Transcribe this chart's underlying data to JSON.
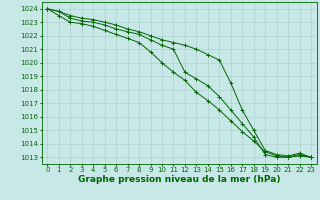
{
  "background_color": "#c8e8e8",
  "grid_color": "#b0d0d0",
  "line_color": "#006600",
  "marker_color": "#006600",
  "xlabel": "Graphe pression niveau de la mer (hPa)",
  "xlabel_fontsize": 6.5,
  "tick_fontsize": 5.0,
  "xlim": [
    -0.5,
    23.5
  ],
  "ylim": [
    1012.5,
    1024.5
  ],
  "yticks": [
    1013,
    1014,
    1015,
    1016,
    1017,
    1018,
    1019,
    1020,
    1021,
    1022,
    1023,
    1024
  ],
  "xticks": [
    0,
    1,
    2,
    3,
    4,
    5,
    6,
    7,
    8,
    9,
    10,
    11,
    12,
    13,
    14,
    15,
    16,
    17,
    18,
    19,
    20,
    21,
    22,
    23
  ],
  "series": [
    [
      1024.0,
      1023.8,
      1023.3,
      1023.1,
      1023.0,
      1022.8,
      1022.5,
      1022.3,
      1022.1,
      1021.7,
      1021.3,
      1021.0,
      1019.3,
      1018.8,
      1018.3,
      1017.5,
      1016.5,
      1015.5,
      1014.5,
      1013.2,
      1013.0,
      1013.0,
      1013.1,
      1013.0
    ],
    [
      1024.0,
      1023.5,
      1023.0,
      1022.9,
      1022.7,
      1022.4,
      1022.1,
      1021.8,
      1021.5,
      1020.8,
      1020.0,
      1019.3,
      1018.7,
      1017.8,
      1017.2,
      1016.5,
      1015.7,
      1014.9,
      1014.2,
      1013.4,
      1013.1,
      1013.0,
      1013.2,
      1013.0
    ],
    [
      1024.0,
      1023.8,
      1023.5,
      1023.3,
      1023.2,
      1023.0,
      1022.8,
      1022.5,
      1022.3,
      1022.0,
      1021.7,
      1021.5,
      1021.3,
      1021.0,
      1020.6,
      1020.2,
      1018.5,
      1016.5,
      1015.0,
      1013.5,
      1013.2,
      1013.1,
      1013.3,
      1013.0
    ]
  ]
}
